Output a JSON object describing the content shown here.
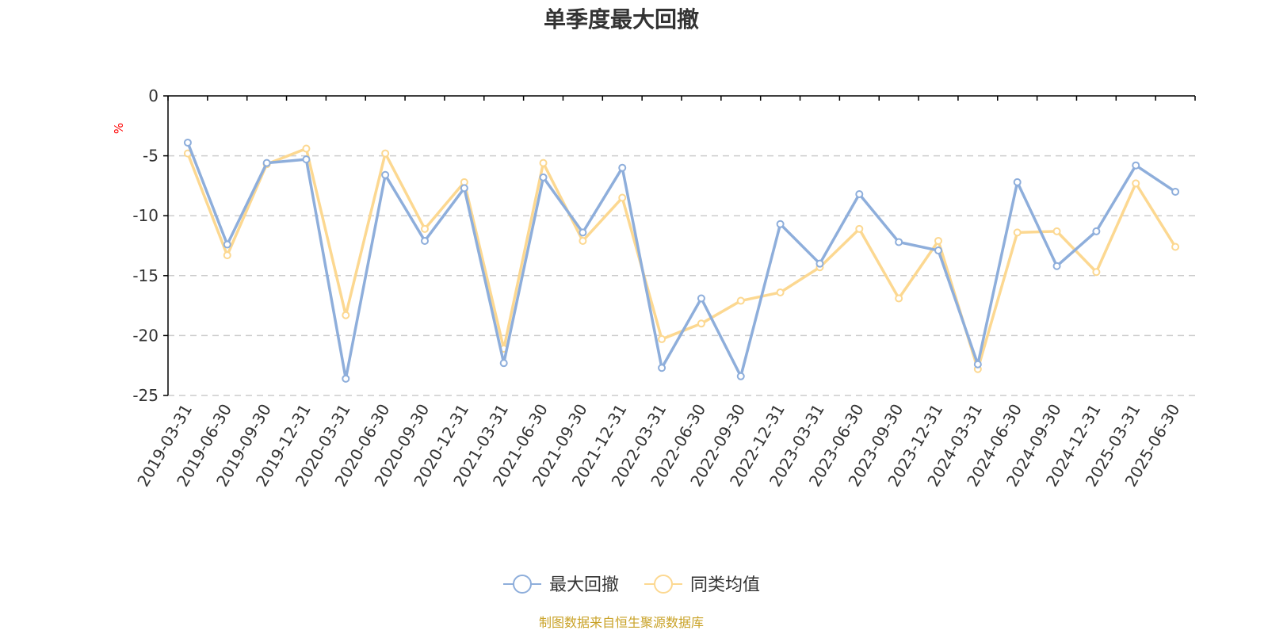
{
  "chart_data": {
    "type": "line",
    "title": "单季度最大回撤",
    "ylabel": "%",
    "xlabel": "",
    "ylim": [
      -25,
      0
    ],
    "yticks": [
      0,
      -5,
      -10,
      -15,
      -20,
      -25
    ],
    "grid": true,
    "legend_position": "bottom",
    "categories": [
      "2019-03-31",
      "2019-06-30",
      "2019-09-30",
      "2019-12-31",
      "2020-03-31",
      "2020-06-30",
      "2020-09-30",
      "2020-12-31",
      "2021-03-31",
      "2021-06-30",
      "2021-09-30",
      "2021-12-31",
      "2022-03-31",
      "2022-06-30",
      "2022-09-30",
      "2022-12-31",
      "2023-03-31",
      "2023-06-30",
      "2023-09-30",
      "2023-12-31",
      "2024-03-31",
      "2024-06-30",
      "2024-09-30",
      "2024-12-31",
      "2025-03-31",
      "2025-06-30"
    ],
    "series": [
      {
        "name": "最大回撤",
        "color": "#8eaedb",
        "values": [
          -3.9,
          -12.4,
          -5.6,
          -5.3,
          -23.6,
          -6.6,
          -12.1,
          -7.7,
          -22.3,
          -6.8,
          -11.4,
          -6.0,
          -22.7,
          -16.9,
          -23.4,
          -10.7,
          -14.0,
          -8.2,
          -12.2,
          -12.9,
          -22.4,
          -7.2,
          -14.2,
          -11.3,
          -5.8,
          -8.0
        ]
      },
      {
        "name": "同类均值",
        "color": "#fcd891",
        "values": [
          -4.8,
          -13.3,
          -5.7,
          -4.4,
          -18.3,
          -4.8,
          -11.1,
          -7.2,
          -21.1,
          -5.6,
          -12.1,
          -8.5,
          -20.3,
          -19.0,
          -17.1,
          -16.4,
          -14.3,
          -11.1,
          -16.9,
          -12.1,
          -22.8,
          -11.4,
          -11.3,
          -14.7,
          -7.3,
          -12.6
        ]
      }
    ]
  },
  "legend": {
    "items": [
      "最大回撤",
      "同类均值"
    ]
  },
  "source_text": "制图数据来自恒生聚源数据库"
}
